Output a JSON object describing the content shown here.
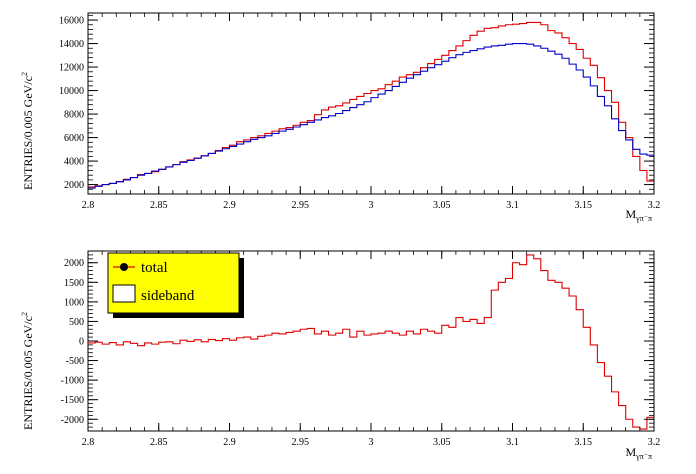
{
  "colors": {
    "red": "#e00000",
    "blue": "#0000cc",
    "legend_fill": "#ffff00",
    "frame": "#000000"
  },
  "chart_data": [
    {
      "type": "line",
      "render": "step-histogram",
      "xlabel": "M",
      "xlabel_sub": "γπ⁻π",
      "ylabel": "ENTRIES/0.005 GeV/c",
      "ylabel_sup": "2",
      "xlim": [
        2.8,
        3.2
      ],
      "ylim": [
        1200,
        16600
      ],
      "xticks": [
        2.8,
        2.85,
        2.9,
        2.95,
        3.0,
        3.05,
        3.1,
        3.15,
        3.2
      ],
      "xtick_labels": [
        "2.8",
        "2.85",
        "2.9",
        "2.95",
        "3",
        "3.05",
        "3.1",
        "3.15",
        "3.2"
      ],
      "yticks": [
        2000,
        4000,
        6000,
        8000,
        10000,
        12000,
        14000,
        16000
      ],
      "ytick_labels": [
        "2000",
        "4000",
        "6000",
        "8000",
        "10000",
        "12000",
        "14000",
        "16000"
      ],
      "bin_edges": [
        2.8,
        2.805,
        2.81,
        2.815,
        2.82,
        2.825,
        2.83,
        2.835,
        2.84,
        2.845,
        2.85,
        2.855,
        2.86,
        2.865,
        2.87,
        2.875,
        2.88,
        2.885,
        2.89,
        2.895,
        2.9,
        2.905,
        2.91,
        2.915,
        2.92,
        2.925,
        2.93,
        2.935,
        2.94,
        2.945,
        2.95,
        2.955,
        2.96,
        2.965,
        2.97,
        2.975,
        2.98,
        2.985,
        2.99,
        2.995,
        3.0,
        3.005,
        3.01,
        3.015,
        3.02,
        3.025,
        3.03,
        3.035,
        3.04,
        3.045,
        3.05,
        3.055,
        3.06,
        3.065,
        3.07,
        3.075,
        3.08,
        3.085,
        3.09,
        3.095,
        3.1,
        3.105,
        3.11,
        3.115,
        3.12,
        3.125,
        3.13,
        3.135,
        3.14,
        3.145,
        3.15,
        3.155,
        3.16,
        3.165,
        3.17,
        3.175,
        3.18,
        3.185,
        3.19,
        3.195,
        3.2
      ],
      "series": [
        {
          "color": "#e00000",
          "values": [
            1800,
            1900,
            2000,
            2100,
            2250,
            2450,
            2600,
            2850,
            2950,
            3100,
            3300,
            3500,
            3700,
            3950,
            4100,
            4250,
            4450,
            4650,
            4900,
            5150,
            5350,
            5650,
            5800,
            6000,
            6150,
            6350,
            6550,
            6750,
            6850,
            7050,
            7300,
            7450,
            7950,
            8350,
            8600,
            8700,
            8950,
            9250,
            9500,
            9750,
            10000,
            10150,
            10500,
            10800,
            11150,
            11350,
            11550,
            11950,
            12300,
            12650,
            13000,
            13400,
            13800,
            14250,
            14700,
            15050,
            15300,
            15350,
            15500,
            15600,
            15650,
            15700,
            15800,
            15800,
            15600,
            15100,
            14900,
            14500,
            14000,
            13500,
            12750,
            12150,
            11100,
            10000,
            9000,
            7300,
            6000,
            4400,
            3200,
            2300
          ]
        },
        {
          "color": "#0000cc",
          "values": [
            1700,
            1850,
            2000,
            2100,
            2250,
            2400,
            2600,
            2800,
            2950,
            3150,
            3300,
            3500,
            3700,
            3900,
            4050,
            4250,
            4450,
            4650,
            4850,
            5050,
            5250,
            5450,
            5650,
            5850,
            6000,
            6150,
            6350,
            6550,
            6700,
            6900,
            7100,
            7300,
            7500,
            7700,
            7850,
            8050,
            8300,
            8550,
            8800,
            9050,
            9400,
            9700,
            10000,
            10350,
            10700,
            11050,
            11350,
            11650,
            11950,
            12200,
            12500,
            12800,
            13050,
            13250,
            13400,
            13550,
            13700,
            13800,
            13850,
            13950,
            14000,
            14000,
            13950,
            13800,
            13600,
            13350,
            13100,
            12750,
            12250,
            11750,
            11150,
            10400,
            9500,
            8700,
            7600,
            6600,
            5800,
            5000,
            4600,
            4500
          ]
        }
      ]
    },
    {
      "type": "line",
      "render": "step-histogram",
      "xlabel": "M",
      "xlabel_sub": "γπ⁻π",
      "ylabel": "ENTRIES/0.005 GeV/c",
      "ylabel_sup": "2",
      "xlim": [
        2.8,
        3.2
      ],
      "ylim": [
        -2300,
        2300
      ],
      "xticks": [
        2.8,
        2.85,
        2.9,
        2.95,
        3.0,
        3.05,
        3.1,
        3.15,
        3.2
      ],
      "xtick_labels": [
        "2.8",
        "2.85",
        "2.9",
        "2.95",
        "3",
        "3.05",
        "3.1",
        "3.15",
        "3.2"
      ],
      "yticks": [
        -2000,
        -1500,
        -1000,
        -500,
        0,
        500,
        1000,
        1500,
        2000
      ],
      "ytick_labels": [
        "-2000",
        "-1500",
        "-1000",
        "-500",
        "0",
        "500",
        "1000",
        "1500",
        "2000"
      ],
      "bin_edges": [
        2.8,
        2.805,
        2.81,
        2.815,
        2.82,
        2.825,
        2.83,
        2.835,
        2.84,
        2.845,
        2.85,
        2.855,
        2.86,
        2.865,
        2.87,
        2.875,
        2.88,
        2.885,
        2.89,
        2.895,
        2.9,
        2.905,
        2.91,
        2.915,
        2.92,
        2.925,
        2.93,
        2.935,
        2.94,
        2.945,
        2.95,
        2.955,
        2.96,
        2.965,
        2.97,
        2.975,
        2.98,
        2.985,
        2.99,
        2.995,
        3.0,
        3.005,
        3.01,
        3.015,
        3.02,
        3.025,
        3.03,
        3.035,
        3.04,
        3.045,
        3.05,
        3.055,
        3.06,
        3.065,
        3.07,
        3.075,
        3.08,
        3.085,
        3.09,
        3.095,
        3.1,
        3.105,
        3.11,
        3.115,
        3.12,
        3.125,
        3.13,
        3.135,
        3.14,
        3.145,
        3.15,
        3.155,
        3.16,
        3.165,
        3.17,
        3.175,
        3.18,
        3.185,
        3.19,
        3.195,
        3.2
      ],
      "series": [
        {
          "color": "#e00000",
          "values": [
            -50,
            -30,
            -80,
            -40,
            -100,
            -20,
            -60,
            -120,
            -50,
            -80,
            -30,
            -20,
            -70,
            20,
            -10,
            30,
            -20,
            40,
            10,
            60,
            20,
            80,
            100,
            50,
            120,
            150,
            200,
            180,
            220,
            250,
            300,
            320,
            180,
            250,
            150,
            200,
            300,
            100,
            250,
            150,
            180,
            200,
            250,
            200,
            150,
            250,
            180,
            300,
            250,
            200,
            400,
            350,
            600,
            500,
            550,
            450,
            600,
            1300,
            1500,
            1600,
            2000,
            1950,
            2200,
            2100,
            1800,
            1550,
            1500,
            1350,
            1150,
            800,
            350,
            -100,
            -550,
            -900,
            -1300,
            -1650,
            -2000,
            -2200,
            -2250,
            -1950
          ]
        },
        {
          "color": "#e00000",
          "values": [
            0,
            0,
            0,
            0,
            0,
            0,
            0,
            0,
            0,
            0,
            0,
            0,
            0,
            0,
            0,
            0,
            0,
            0,
            0,
            0,
            0,
            0,
            0,
            0,
            0,
            0,
            0,
            0,
            0,
            0,
            0,
            0,
            0,
            0,
            0,
            0,
            0,
            0,
            0,
            0,
            0,
            0,
            0,
            0,
            0,
            0,
            0,
            0,
            0,
            0,
            0,
            0,
            0,
            0,
            0,
            0,
            0,
            0,
            0,
            0,
            0,
            0,
            0,
            0,
            0,
            0,
            0,
            0,
            0,
            0,
            0,
            0,
            0,
            0,
            0,
            0,
            0,
            0,
            0,
            0
          ]
        }
      ],
      "legend": {
        "placement": "top-left",
        "entries": [
          {
            "label": "total",
            "marker": "line-dot",
            "color": "#e00000"
          },
          {
            "label": "sideband",
            "marker": "box",
            "color": "#000000"
          }
        ]
      }
    }
  ]
}
